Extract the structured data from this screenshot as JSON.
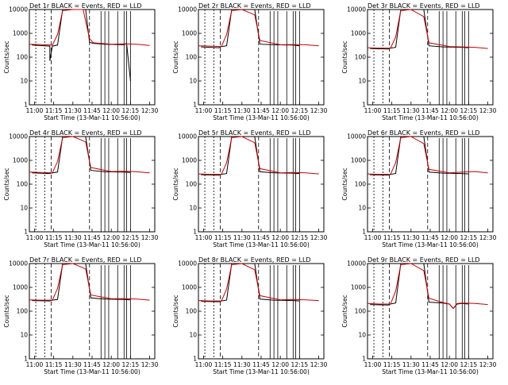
{
  "chart_data": [
    {
      "type": "line",
      "title": "Det 1r BLACK = Events, RED = LLD",
      "xlabel": "Start Time (13-Mar-11 10:56:00)",
      "ylabel": "Counts/sec",
      "x_tick_labels": [
        "11:00",
        "11:15",
        "11:30",
        "11:45",
        "12:00",
        "12:15",
        "12:30"
      ],
      "y_tick_labels": [
        "1",
        "10",
        "100",
        "1000",
        "10000"
      ],
      "yscale": "log",
      "ylim": [
        1,
        10000
      ],
      "series": [
        {
          "name": "Events",
          "color": "#000000",
          "x": [
            "10:58",
            "11:12",
            "11:12",
            "11:14",
            "11:18",
            "11:22",
            "11:40",
            "11:43",
            "11:46",
            "11:55",
            "12:05",
            "12:10",
            "12:12",
            "12:15"
          ],
          "values": [
            320,
            290,
            70,
            290,
            320,
            10000,
            10000,
            420,
            380,
            350,
            340,
            330,
            380,
            10
          ]
        },
        {
          "name": "LLD",
          "color": "#cc0000",
          "x": [
            "10:56",
            "11:05",
            "11:14",
            "11:18",
            "11:22",
            "11:30",
            "11:38",
            "11:43",
            "11:46",
            "12:00",
            "12:10",
            "12:20",
            "12:30"
          ],
          "values": [
            350,
            340,
            320,
            900,
            9000,
            10000,
            10000,
            600,
            400,
            350,
            360,
            350,
            310
          ]
        }
      ]
    },
    {
      "type": "line",
      "title": "Det 2r BLACK = Events, RED = LLD",
      "xlabel": "Start Time (13-Mar-11 10:56:00)",
      "ylabel": "Counts/sec",
      "x_tick_labels": [
        "11:00",
        "11:15",
        "11:30",
        "11:45",
        "12:00",
        "12:15",
        "12:30"
      ],
      "y_tick_labels": [
        "1",
        "10",
        "100",
        "1000",
        "10000"
      ],
      "yscale": "log",
      "ylim": [
        1,
        10000
      ],
      "series": [
        {
          "name": "Events",
          "color": "#000000",
          "x": [
            "10:58",
            "11:12",
            "11:14",
            "11:18",
            "11:22",
            "11:40",
            "11:44",
            "11:55",
            "12:10",
            "12:15"
          ],
          "values": [
            270,
            250,
            280,
            300,
            10000,
            10000,
            350,
            330,
            320,
            300
          ]
        },
        {
          "name": "LLD",
          "color": "#cc0000",
          "x": [
            "10:56",
            "11:05",
            "11:14",
            "11:18",
            "11:22",
            "11:30",
            "11:40",
            "11:44",
            "12:00",
            "12:10",
            "12:20",
            "12:30"
          ],
          "values": [
            300,
            290,
            280,
            900,
            9000,
            10000,
            6000,
            500,
            330,
            340,
            330,
            300
          ]
        }
      ]
    },
    {
      "type": "line",
      "title": "Det 3r BLACK = Events, RED = LLD",
      "xlabel": "Start Time (13-Mar-11 10:56:00)",
      "ylabel": "Counts/sec",
      "x_tick_labels": [
        "11:00",
        "11:15",
        "11:30",
        "11:45",
        "12:00",
        "12:15",
        "12:30"
      ],
      "y_tick_labels": [
        "1",
        "10",
        "100",
        "1000",
        "10000"
      ],
      "yscale": "log",
      "ylim": [
        1,
        10000
      ],
      "series": [
        {
          "name": "Events",
          "color": "#000000",
          "x": [
            "10:58",
            "11:12",
            "11:14",
            "11:18",
            "11:22",
            "11:40",
            "11:44",
            "11:55",
            "12:10",
            "12:15"
          ],
          "values": [
            230,
            220,
            240,
            260,
            10000,
            10000,
            300,
            270,
            260,
            250
          ]
        },
        {
          "name": "LLD",
          "color": "#cc0000",
          "x": [
            "10:56",
            "11:05",
            "11:14",
            "11:18",
            "11:22",
            "11:30",
            "11:40",
            "11:44",
            "12:00",
            "12:10",
            "12:20",
            "12:30"
          ],
          "values": [
            250,
            240,
            240,
            700,
            9000,
            10000,
            5000,
            400,
            280,
            270,
            260,
            230
          ]
        }
      ]
    },
    {
      "type": "line",
      "title": "Det 4r BLACK = Events, RED = LLD",
      "xlabel": "Start Time (13-Mar-11 10:56:00)",
      "ylabel": "Counts/sec",
      "x_tick_labels": [
        "11:00",
        "11:15",
        "11:30",
        "11:45",
        "12:00",
        "12:15",
        "12:30"
      ],
      "y_tick_labels": [
        "1",
        "10",
        "100",
        "1000",
        "10000"
      ],
      "yscale": "log",
      "ylim": [
        1,
        10000
      ],
      "series": [
        {
          "name": "Events",
          "color": "#000000",
          "x": [
            "10:58",
            "11:12",
            "11:14",
            "11:18",
            "11:22",
            "11:40",
            "11:44",
            "11:55",
            "12:10",
            "12:15"
          ],
          "values": [
            300,
            280,
            300,
            320,
            10000,
            10000,
            380,
            330,
            320,
            310
          ]
        },
        {
          "name": "LLD",
          "color": "#cc0000",
          "x": [
            "10:56",
            "11:05",
            "11:14",
            "11:18",
            "11:22",
            "11:30",
            "11:40",
            "11:44",
            "12:00",
            "12:10",
            "12:20",
            "12:30"
          ],
          "values": [
            320,
            310,
            300,
            900,
            9000,
            10000,
            6000,
            500,
            340,
            350,
            330,
            300
          ]
        }
      ]
    },
    {
      "type": "line",
      "title": "Det 5r BLACK = Events, RED = LLD",
      "xlabel": "Start Time (13-Mar-11 10:56:00)",
      "ylabel": "Counts/sec",
      "x_tick_labels": [
        "11:00",
        "11:15",
        "11:30",
        "11:45",
        "12:00",
        "12:15",
        "12:30"
      ],
      "y_tick_labels": [
        "1",
        "10",
        "100",
        "1000",
        "10000"
      ],
      "yscale": "log",
      "ylim": [
        1,
        10000
      ],
      "series": [
        {
          "name": "Events",
          "color": "#000000",
          "x": [
            "10:58",
            "11:12",
            "11:14",
            "11:18",
            "11:22",
            "11:40",
            "11:44",
            "11:55",
            "12:10",
            "12:15"
          ],
          "values": [
            250,
            240,
            260,
            280,
            10000,
            10000,
            330,
            300,
            290,
            280
          ]
        },
        {
          "name": "LLD",
          "color": "#cc0000",
          "x": [
            "10:56",
            "11:05",
            "11:14",
            "11:18",
            "11:22",
            "11:30",
            "11:40",
            "11:44",
            "12:00",
            "12:10",
            "12:20",
            "12:30"
          ],
          "values": [
            270,
            260,
            260,
            800,
            9000,
            10000,
            5500,
            450,
            300,
            310,
            300,
            270
          ]
        }
      ]
    },
    {
      "type": "line",
      "title": "Det 6r BLACK = Events, RED = LLD",
      "xlabel": "Start Time (13-Mar-11 10:56:00)",
      "ylabel": "Counts/sec",
      "x_tick_labels": [
        "11:00",
        "11:15",
        "11:30",
        "11:45",
        "12:00",
        "12:15",
        "12:30"
      ],
      "y_tick_labels": [
        "1",
        "10",
        "100",
        "1000",
        "10000"
      ],
      "yscale": "log",
      "ylim": [
        1,
        10000
      ],
      "series": [
        {
          "name": "Events",
          "color": "#000000",
          "x": [
            "10:58",
            "11:12",
            "11:14",
            "11:18",
            "11:22",
            "11:40",
            "11:44",
            "11:55",
            "12:10",
            "12:15"
          ],
          "values": [
            250,
            240,
            260,
            280,
            10000,
            10000,
            320,
            290,
            280,
            270
          ]
        },
        {
          "name": "LLD",
          "color": "#cc0000",
          "x": [
            "10:56",
            "11:05",
            "11:14",
            "11:18",
            "11:22",
            "11:30",
            "11:40",
            "11:44",
            "12:00",
            "12:10",
            "12:20",
            "12:30"
          ],
          "values": [
            270,
            260,
            260,
            800,
            9000,
            10000,
            5000,
            420,
            300,
            320,
            340,
            300
          ]
        }
      ]
    },
    {
      "type": "line",
      "title": "Det 7r BLACK = Events, RED = LLD",
      "xlabel": "Start Time (13-Mar-11 10:56:00)",
      "ylabel": "Counts/sec",
      "x_tick_labels": [
        "11:00",
        "11:15",
        "11:30",
        "11:45",
        "12:00",
        "12:15",
        "12:30"
      ],
      "y_tick_labels": [
        "1",
        "10",
        "100",
        "1000",
        "10000"
      ],
      "yscale": "log",
      "ylim": [
        1,
        10000
      ],
      "series": [
        {
          "name": "Events",
          "color": "#000000",
          "x": [
            "10:58",
            "11:12",
            "11:14",
            "11:18",
            "11:22",
            "11:40",
            "11:44",
            "11:55",
            "12:10",
            "12:15"
          ],
          "values": [
            280,
            270,
            290,
            310,
            10000,
            10000,
            360,
            320,
            310,
            300
          ]
        },
        {
          "name": "LLD",
          "color": "#cc0000",
          "x": [
            "10:56",
            "11:05",
            "11:14",
            "11:18",
            "11:22",
            "11:30",
            "11:40",
            "11:44",
            "12:00",
            "12:10",
            "12:20",
            "12:30"
          ],
          "values": [
            300,
            290,
            290,
            900,
            9000,
            10000,
            6000,
            480,
            330,
            340,
            320,
            290
          ]
        }
      ]
    },
    {
      "type": "line",
      "title": "Det 8r BLACK = Events, RED = LLD",
      "xlabel": "Start Time (13-Mar-11 10:56:00)",
      "ylabel": "Counts/sec",
      "x_tick_labels": [
        "11:00",
        "11:15",
        "11:30",
        "11:45",
        "12:00",
        "12:15",
        "12:30"
      ],
      "y_tick_labels": [
        "1",
        "10",
        "100",
        "1000",
        "10000"
      ],
      "yscale": "log",
      "ylim": [
        1,
        10000
      ],
      "series": [
        {
          "name": "Events",
          "color": "#000000",
          "x": [
            "10:58",
            "11:12",
            "11:14",
            "11:18",
            "11:22",
            "11:40",
            "11:44",
            "11:55",
            "12:10",
            "12:15"
          ],
          "values": [
            260,
            250,
            270,
            290,
            10000,
            10000,
            320,
            290,
            280,
            270
          ]
        },
        {
          "name": "LLD",
          "color": "#cc0000",
          "x": [
            "10:56",
            "11:05",
            "11:14",
            "11:18",
            "11:22",
            "11:30",
            "11:40",
            "11:44",
            "12:00",
            "12:10",
            "12:20",
            "12:30"
          ],
          "values": [
            280,
            270,
            270,
            850,
            9000,
            10000,
            5500,
            450,
            300,
            310,
            300,
            280
          ]
        }
      ]
    },
    {
      "type": "line",
      "title": "Det 9r BLACK = Events, RED = LLD",
      "xlabel": "Start Time (13-Mar-11 10:56:00)",
      "ylabel": "Counts/sec",
      "x_tick_labels": [
        "11:00",
        "11:15",
        "11:30",
        "11:45",
        "12:00",
        "12:15",
        "12:30"
      ],
      "y_tick_labels": [
        "1",
        "10",
        "100",
        "1000",
        "10000"
      ],
      "yscale": "log",
      "ylim": [
        1,
        10000
      ],
      "series": [
        {
          "name": "Events",
          "color": "#000000",
          "x": [
            "10:58",
            "11:12",
            "11:14",
            "11:18",
            "11:22",
            "11:40",
            "11:44",
            "11:55",
            "12:00",
            "12:03",
            "12:06",
            "12:10",
            "12:15"
          ],
          "values": [
            190,
            180,
            200,
            220,
            10000,
            10000,
            240,
            220,
            200,
            130,
            200,
            210,
            200
          ]
        },
        {
          "name": "LLD",
          "color": "#cc0000",
          "x": [
            "10:56",
            "11:05",
            "11:14",
            "11:18",
            "11:22",
            "11:30",
            "11:40",
            "11:44",
            "11:55",
            "12:00",
            "12:03",
            "12:06",
            "12:10",
            "12:20",
            "12:30"
          ],
          "values": [
            210,
            200,
            200,
            700,
            9000,
            10000,
            5000,
            350,
            230,
            200,
            130,
            210,
            220,
            210,
            190
          ]
        }
      ]
    }
  ]
}
